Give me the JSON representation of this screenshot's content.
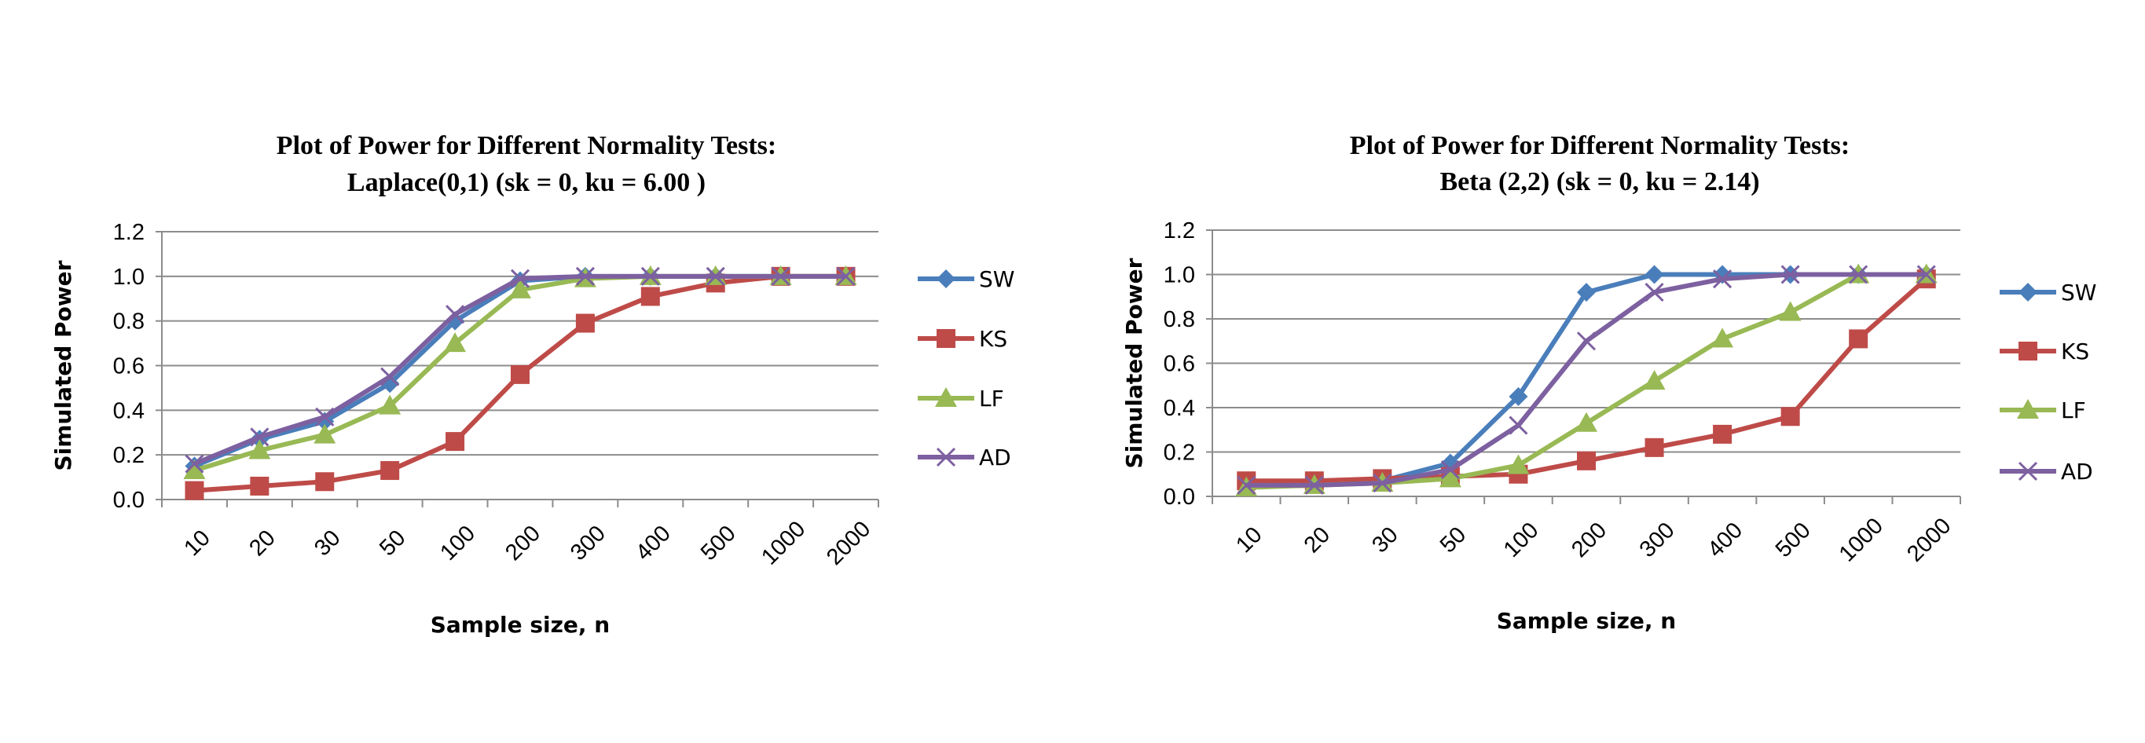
{
  "chart_data": [
    {
      "type": "line",
      "title": "Plot of Power for Different Normality Tests:",
      "subtitle": "Laplace(0,1) (sk = 0, ku = 6.00 )",
      "xlabel": "Sample size, n",
      "ylabel": "Simulated Power",
      "categories": [
        "10",
        "20",
        "30",
        "50",
        "100",
        "200",
        "300",
        "400",
        "500",
        "1000",
        "2000"
      ],
      "ylim": [
        0,
        1.2
      ],
      "yticks": [
        "0.0",
        "0.2",
        "0.4",
        "0.6",
        "0.8",
        "1.0",
        "1.2"
      ],
      "grid": true,
      "legend": "right",
      "series": [
        {
          "name": "SW",
          "color": "#4A7EBB",
          "marker": "diamond",
          "values": [
            0.15,
            0.27,
            0.35,
            0.52,
            0.8,
            0.98,
            1.0,
            1.0,
            1.0,
            1.0,
            1.0
          ]
        },
        {
          "name": "KS",
          "color": "#BE4B48",
          "marker": "square",
          "values": [
            0.04,
            0.06,
            0.08,
            0.13,
            0.26,
            0.56,
            0.79,
            0.91,
            0.97,
            1.0,
            1.0
          ]
        },
        {
          "name": "LF",
          "color": "#98B954",
          "marker": "triangle",
          "values": [
            0.13,
            0.22,
            0.29,
            0.42,
            0.7,
            0.94,
            0.99,
            1.0,
            1.0,
            1.0,
            1.0
          ]
        },
        {
          "name": "AD",
          "color": "#7D60A0",
          "marker": "x",
          "values": [
            0.16,
            0.28,
            0.37,
            0.55,
            0.83,
            0.99,
            1.0,
            1.0,
            1.0,
            1.0,
            1.0
          ]
        }
      ]
    },
    {
      "type": "line",
      "title": "Plot of Power for Different Normality Tests:",
      "subtitle": "Beta (2,2) (sk = 0, ku = 2.14)",
      "xlabel": "Sample size, n",
      "ylabel": "Simulated Power",
      "categories": [
        "10",
        "20",
        "30",
        "50",
        "100",
        "200",
        "300",
        "400",
        "500",
        "1000",
        "2000"
      ],
      "ylim": [
        0,
        1.2
      ],
      "yticks": [
        "0.0",
        "0.2",
        "0.4",
        "0.6",
        "0.8",
        "1.0",
        "1.2"
      ],
      "grid": true,
      "legend": "right",
      "series": [
        {
          "name": "SW",
          "color": "#4A7EBB",
          "marker": "diamond",
          "values": [
            0.05,
            0.06,
            0.07,
            0.15,
            0.45,
            0.92,
            1.0,
            1.0,
            1.0,
            1.0,
            1.0
          ]
        },
        {
          "name": "KS",
          "color": "#BE4B48",
          "marker": "square",
          "values": [
            0.07,
            0.07,
            0.08,
            0.09,
            0.1,
            0.16,
            0.22,
            0.28,
            0.36,
            0.71,
            0.98
          ]
        },
        {
          "name": "LF",
          "color": "#98B954",
          "marker": "triangle",
          "values": [
            0.04,
            0.05,
            0.06,
            0.08,
            0.14,
            0.33,
            0.52,
            0.71,
            0.83,
            1.0,
            1.0
          ]
        },
        {
          "name": "AD",
          "color": "#7D60A0",
          "marker": "x",
          "values": [
            0.05,
            0.05,
            0.06,
            0.12,
            0.32,
            0.7,
            0.92,
            0.98,
            1.0,
            1.0,
            1.0
          ]
        }
      ]
    }
  ]
}
